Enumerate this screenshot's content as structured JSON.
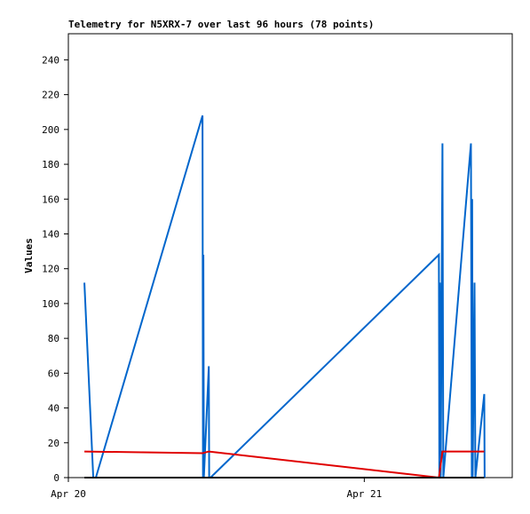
{
  "chart_data": {
    "type": "line",
    "title": "Telemetry for N5XRX-7 over last 96 hours (78 points)",
    "y_label": "Values",
    "xlim": [
      0,
      36
    ],
    "xticks": [
      {
        "value": 0,
        "label": "Apr 20"
      },
      {
        "value": 24,
        "label": "Apr 21"
      }
    ],
    "ylim": [
      0,
      255
    ],
    "yticks": [
      0,
      20,
      40,
      60,
      80,
      100,
      120,
      140,
      160,
      180,
      200,
      220,
      240
    ],
    "grid": false,
    "series": [
      {
        "color": "#0066cc",
        "x": [
          1.3,
          2.02,
          2.23,
          10.88,
          10.92,
          10.95,
          10.99,
          11.39,
          11.42,
          11.53,
          30.05,
          30.09,
          30.13,
          30.2,
          30.27,
          30.34,
          30.41,
          32.65,
          32.72,
          32.75,
          32.79,
          32.94,
          33.01,
          33.73,
          33.76
        ],
        "values": [
          112,
          0,
          0,
          208,
          0,
          128,
          0,
          64,
          0,
          0,
          128,
          0,
          112,
          0,
          96,
          192,
          0,
          192,
          0,
          160,
          0,
          112,
          0,
          48,
          0
        ]
      },
      {
        "color": "#e00000",
        "x": [
          1.3,
          10.88,
          11.39,
          30.05,
          30.34,
          33.73
        ],
        "values": [
          15,
          14,
          15,
          0,
          15,
          15
        ]
      },
      {
        "color": "#000000",
        "x": [
          1.3,
          33.73
        ],
        "values": [
          0,
          0
        ]
      }
    ]
  }
}
